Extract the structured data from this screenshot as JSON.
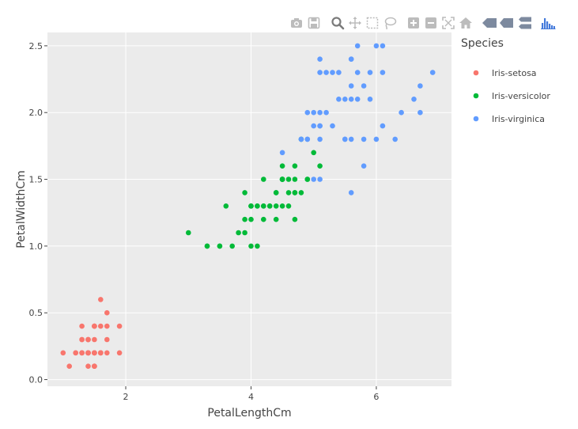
{
  "modebar": {
    "buttons": [
      {
        "name": "camera-icon",
        "title": "Download plot as a png"
      },
      {
        "name": "save-icon",
        "title": "Save and edit plot in cloud"
      },
      {
        "name": "zoom-icon",
        "title": "Zoom"
      },
      {
        "name": "pan-icon",
        "title": "Pan"
      },
      {
        "name": "box-select-icon",
        "title": "Box Select"
      },
      {
        "name": "lasso-select-icon",
        "title": "Lasso Select"
      },
      {
        "name": "zoom-in-icon",
        "title": "Zoom in"
      },
      {
        "name": "zoom-out-icon",
        "title": "Zoom out"
      },
      {
        "name": "autoscale-icon",
        "title": "Autoscale"
      },
      {
        "name": "home-icon",
        "title": "Reset axes"
      },
      {
        "name": "spike-lines-icon",
        "title": "Toggle Spike Lines"
      },
      {
        "name": "hover-closest-icon",
        "title": "Show closest data on hover"
      },
      {
        "name": "hover-compare-icon",
        "title": "Compare data on hover"
      },
      {
        "name": "plotly-logo-icon",
        "title": "Produced with Plotly"
      }
    ],
    "colors": {
      "inactive": "#bcbcbc",
      "active": "#7b7b7b",
      "logo": "#447adb"
    }
  },
  "chart_data": {
    "type": "scatter",
    "xlabel": "PetalLengthCm",
    "ylabel": "PetalWidthCm",
    "xlim": [
      0.75,
      7.2
    ],
    "ylim": [
      -0.05,
      2.6
    ],
    "xticks": [
      2,
      4,
      6
    ],
    "yticks": [
      0.0,
      0.5,
      1.0,
      1.5,
      2.0,
      2.5
    ],
    "ytick_labels": [
      "0.0",
      "0.5",
      "1.0",
      "1.5",
      "2.0",
      "2.5"
    ],
    "grid": true,
    "plot_background": "#ebebeb",
    "legend": {
      "title": "Species",
      "position": "right"
    },
    "series": [
      {
        "name": "Iris-setosa",
        "color": "#f8766d",
        "points": [
          [
            1.4,
            0.2
          ],
          [
            1.4,
            0.2
          ],
          [
            1.3,
            0.2
          ],
          [
            1.5,
            0.2
          ],
          [
            1.4,
            0.2
          ],
          [
            1.7,
            0.4
          ],
          [
            1.4,
            0.3
          ],
          [
            1.5,
            0.2
          ],
          [
            1.4,
            0.2
          ],
          [
            1.5,
            0.1
          ],
          [
            1.5,
            0.2
          ],
          [
            1.6,
            0.2
          ],
          [
            1.4,
            0.1
          ],
          [
            1.1,
            0.1
          ],
          [
            1.2,
            0.2
          ],
          [
            1.5,
            0.4
          ],
          [
            1.3,
            0.4
          ],
          [
            1.4,
            0.3
          ],
          [
            1.7,
            0.3
          ],
          [
            1.5,
            0.3
          ],
          [
            1.7,
            0.2
          ],
          [
            1.5,
            0.4
          ],
          [
            1.0,
            0.2
          ],
          [
            1.7,
            0.5
          ],
          [
            1.9,
            0.2
          ],
          [
            1.6,
            0.2
          ],
          [
            1.6,
            0.4
          ],
          [
            1.5,
            0.2
          ],
          [
            1.4,
            0.2
          ],
          [
            1.6,
            0.2
          ],
          [
            1.6,
            0.2
          ],
          [
            1.5,
            0.4
          ],
          [
            1.5,
            0.1
          ],
          [
            1.4,
            0.2
          ],
          [
            1.5,
            0.1
          ],
          [
            1.2,
            0.2
          ],
          [
            1.3,
            0.2
          ],
          [
            1.5,
            0.1
          ],
          [
            1.3,
            0.2
          ],
          [
            1.5,
            0.2
          ],
          [
            1.3,
            0.3
          ],
          [
            1.3,
            0.3
          ],
          [
            1.3,
            0.2
          ],
          [
            1.6,
            0.6
          ],
          [
            1.9,
            0.4
          ],
          [
            1.4,
            0.3
          ],
          [
            1.6,
            0.2
          ],
          [
            1.4,
            0.2
          ],
          [
            1.5,
            0.2
          ],
          [
            1.4,
            0.2
          ]
        ]
      },
      {
        "name": "Iris-versicolor",
        "color": "#00ba38",
        "points": [
          [
            4.7,
            1.4
          ],
          [
            4.5,
            1.5
          ],
          [
            4.9,
            1.5
          ],
          [
            4.0,
            1.3
          ],
          [
            4.6,
            1.5
          ],
          [
            4.5,
            1.3
          ],
          [
            4.7,
            1.6
          ],
          [
            3.3,
            1.0
          ],
          [
            4.6,
            1.3
          ],
          [
            3.9,
            1.4
          ],
          [
            3.5,
            1.0
          ],
          [
            4.2,
            1.5
          ],
          [
            4.0,
            1.0
          ],
          [
            4.7,
            1.4
          ],
          [
            3.6,
            1.3
          ],
          [
            4.4,
            1.4
          ],
          [
            4.5,
            1.5
          ],
          [
            4.1,
            1.0
          ],
          [
            4.5,
            1.5
          ],
          [
            3.9,
            1.1
          ],
          [
            4.8,
            1.8
          ],
          [
            4.0,
            1.3
          ],
          [
            4.9,
            1.5
          ],
          [
            4.7,
            1.2
          ],
          [
            4.3,
            1.3
          ],
          [
            4.4,
            1.4
          ],
          [
            4.8,
            1.4
          ],
          [
            5.0,
            1.7
          ],
          [
            4.5,
            1.5
          ],
          [
            3.5,
            1.0
          ],
          [
            3.8,
            1.1
          ],
          [
            3.7,
            1.0
          ],
          [
            3.9,
            1.2
          ],
          [
            5.1,
            1.6
          ],
          [
            4.5,
            1.5
          ],
          [
            4.5,
            1.6
          ],
          [
            4.7,
            1.5
          ],
          [
            4.4,
            1.3
          ],
          [
            4.1,
            1.3
          ],
          [
            4.0,
            1.3
          ],
          [
            4.4,
            1.2
          ],
          [
            4.6,
            1.4
          ],
          [
            4.0,
            1.2
          ],
          [
            3.3,
            1.0
          ],
          [
            4.2,
            1.3
          ],
          [
            4.2,
            1.2
          ],
          [
            4.2,
            1.3
          ],
          [
            4.3,
            1.3
          ],
          [
            3.0,
            1.1
          ],
          [
            4.1,
            1.3
          ]
        ]
      },
      {
        "name": "Iris-virginica",
        "color": "#619cff",
        "points": [
          [
            6.0,
            2.5
          ],
          [
            5.1,
            1.9
          ],
          [
            5.9,
            2.1
          ],
          [
            5.6,
            1.8
          ],
          [
            5.8,
            2.2
          ],
          [
            6.6,
            2.1
          ],
          [
            4.5,
            1.7
          ],
          [
            6.3,
            1.8
          ],
          [
            5.8,
            1.8
          ],
          [
            6.1,
            2.5
          ],
          [
            5.1,
            2.0
          ],
          [
            5.3,
            1.9
          ],
          [
            5.5,
            2.1
          ],
          [
            5.0,
            2.0
          ],
          [
            5.1,
            2.4
          ],
          [
            5.3,
            2.3
          ],
          [
            5.5,
            1.8
          ],
          [
            6.7,
            2.2
          ],
          [
            6.9,
            2.3
          ],
          [
            5.0,
            1.5
          ],
          [
            5.7,
            2.3
          ],
          [
            4.9,
            2.0
          ],
          [
            6.7,
            2.0
          ],
          [
            4.9,
            1.8
          ],
          [
            5.7,
            2.1
          ],
          [
            6.0,
            1.8
          ],
          [
            4.8,
            1.8
          ],
          [
            4.9,
            1.8
          ],
          [
            5.6,
            2.1
          ],
          [
            5.8,
            1.6
          ],
          [
            6.1,
            1.9
          ],
          [
            6.4,
            2.0
          ],
          [
            5.6,
            2.2
          ],
          [
            5.1,
            1.5
          ],
          [
            5.6,
            1.4
          ],
          [
            6.1,
            2.3
          ],
          [
            5.6,
            2.4
          ],
          [
            5.5,
            1.8
          ],
          [
            4.8,
            1.8
          ],
          [
            5.4,
            2.1
          ],
          [
            5.6,
            2.4
          ],
          [
            5.1,
            2.3
          ],
          [
            5.1,
            1.9
          ],
          [
            5.9,
            2.3
          ],
          [
            5.7,
            2.5
          ],
          [
            5.2,
            2.3
          ],
          [
            5.0,
            1.9
          ],
          [
            5.2,
            2.0
          ],
          [
            5.4,
            2.3
          ],
          [
            5.1,
            1.8
          ]
        ]
      }
    ]
  }
}
